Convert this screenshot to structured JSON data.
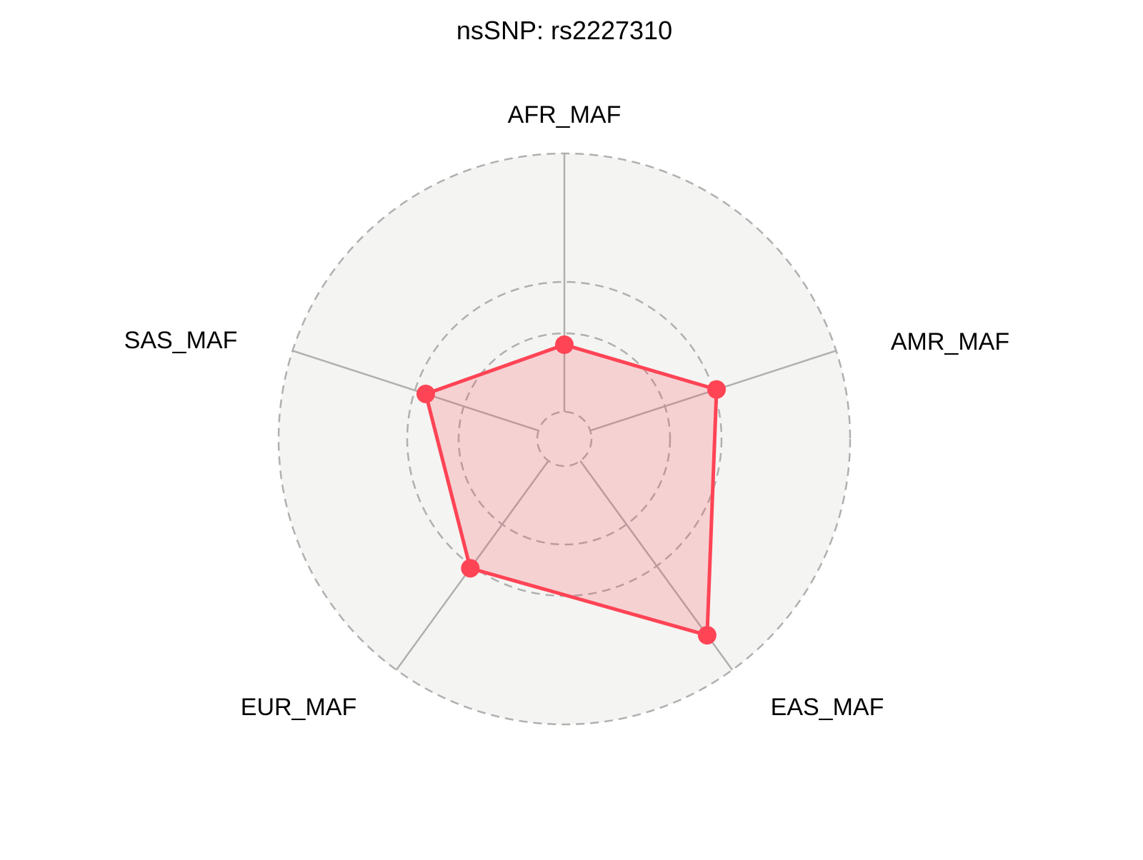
{
  "chart_data": {
    "type": "radar",
    "title": "nsSNP: rs2227310",
    "categories": [
      "AFR_MAF",
      "AMR_MAF",
      "EAS_MAF",
      "EUR_MAF",
      "SAS_MAF"
    ],
    "series": [
      {
        "values": [
          0.33,
          0.56,
          0.85,
          0.56,
          0.51
        ]
      }
    ],
    "rlim": [
      0,
      1
    ],
    "grid_circles": [
      0.095,
      0.37,
      0.55,
      1.0
    ],
    "grid": true,
    "legend": "none",
    "colors": {
      "series": "#ff4455",
      "series_fill": "#f4cfd2",
      "panel": "#f4f4f2",
      "grid": "#b0b0b0"
    }
  }
}
